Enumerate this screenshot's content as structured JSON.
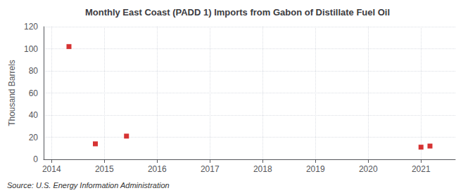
{
  "chart_data": {
    "type": "scatter",
    "title": "Monthly East Coast (PADD 1) Imports from Gabon of Distillate Fuel Oil",
    "ylabel": "Thousand Barrels",
    "annotation": "Source: U.S. Energy Information Administration",
    "x": [
      2014.33,
      2014.83,
      2015.42,
      2021.0,
      2021.17
    ],
    "values": [
      102,
      14,
      21,
      11,
      12
    ],
    "color": "#cc0000",
    "marker": "square",
    "xlim": [
      2013.85,
      2021.65
    ],
    "ylim": [
      0,
      120
    ],
    "xticks": [
      2014,
      2015,
      2016,
      2017,
      2018,
      2019,
      2020,
      2021
    ],
    "yticks": [
      0,
      20,
      40,
      60,
      80,
      100,
      120
    ],
    "grid": true
  }
}
